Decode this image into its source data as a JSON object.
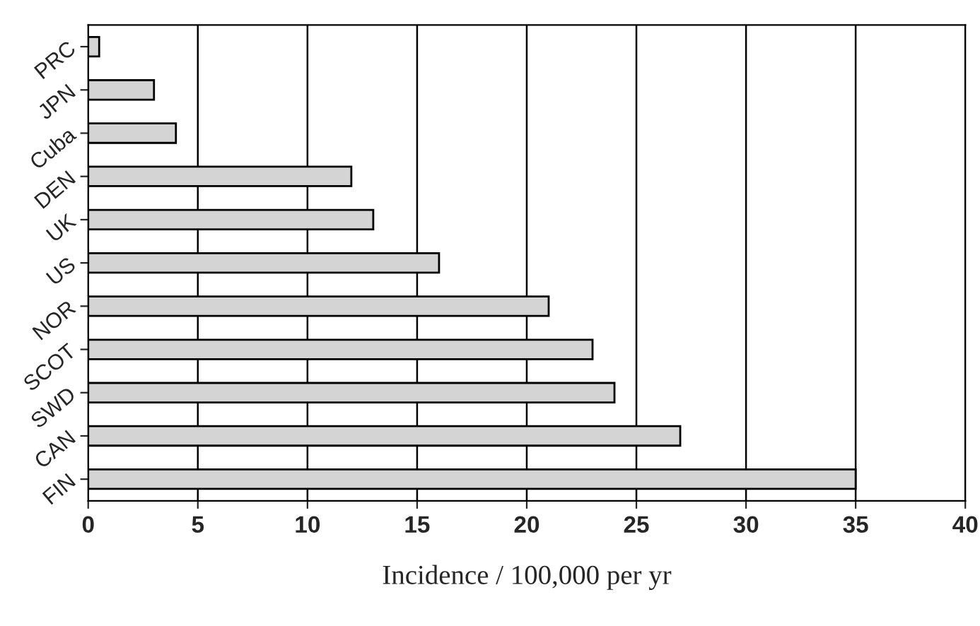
{
  "chart_data": {
    "type": "bar",
    "orientation": "horizontal",
    "xlabel": "Incidence / 100,000 per yr",
    "categories": [
      "PRC",
      "JPN",
      "Cuba",
      "DEN",
      "UK",
      "US",
      "NOR",
      "SCOT",
      "SWD",
      "CAN",
      "FIN"
    ],
    "values": [
      0.5,
      3,
      4,
      12,
      13,
      16,
      21,
      23,
      24,
      27,
      35
    ],
    "color": "#d4d4d4",
    "xlim": [
      0,
      40
    ],
    "xticks": [
      0,
      5,
      10,
      15,
      20,
      25,
      30,
      35,
      40
    ],
    "grid": "x",
    "legend": false
  }
}
